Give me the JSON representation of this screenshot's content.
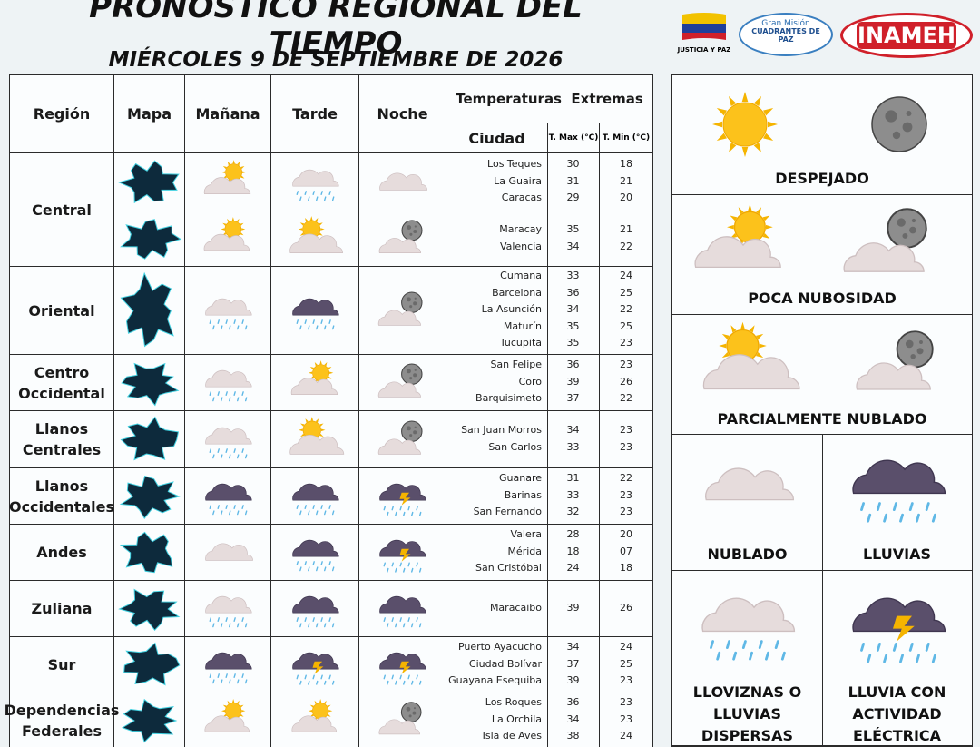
{
  "header": {
    "title": "PRONÓSTICO REGIONAL DEL TIEMPO",
    "date": "MIÉRCOLES 9 DE SEPTIEMBRE DE 2026"
  },
  "logos": {
    "flag_caption": "JUSTICIA Y PAZ",
    "mission": "Gran Misión",
    "mission_name": "CUADRANTES DE PAZ",
    "institute": "INAMEH"
  },
  "table": {
    "columns": [
      "Región",
      "Mapa",
      "Mañana",
      "Tarde",
      "Noche"
    ],
    "temperature_header": "Temperaturas  Extremas",
    "subcolumns": [
      "Ciudad",
      "T. Max (°C)",
      "T. Min (°C)"
    ],
    "regions": [
      {
        "name": "Central",
        "groups": [
          {
            "cities": [
              [
                "Los Teques",
                30,
                18
              ],
              [
                "La Guaira",
                31,
                21
              ],
              [
                "Caracas",
                29,
                20
              ]
            ]
          },
          {
            "cities": [
              [
                "Maracay",
                35,
                21
              ],
              [
                "Valencia",
                34,
                22
              ]
            ]
          }
        ]
      },
      {
        "name": "Oriental",
        "groups": [
          {
            "cities": [
              [
                "Cumana",
                33,
                24
              ],
              [
                "Barcelona",
                36,
                25
              ],
              [
                "La Asunción",
                34,
                22
              ],
              [
                "Maturín",
                35,
                25
              ],
              [
                "Tucupita",
                35,
                23
              ]
            ]
          }
        ]
      },
      {
        "name": "Centro Occidental",
        "groups": [
          {
            "cities": [
              [
                "San Felipe",
                36,
                23
              ],
              [
                "Coro",
                39,
                26
              ],
              [
                "Barquisimeto",
                37,
                22
              ]
            ]
          }
        ]
      },
      {
        "name": "Llanos Centrales",
        "groups": [
          {
            "cities": [
              [
                "San Juan Morros",
                34,
                23
              ],
              [
                "San Carlos",
                33,
                23
              ]
            ]
          }
        ]
      },
      {
        "name": "Llanos Occidentales",
        "groups": [
          {
            "cities": [
              [
                "Guanare",
                31,
                22
              ],
              [
                "Barinas",
                33,
                23
              ],
              [
                "San Fernando",
                32,
                23
              ]
            ]
          }
        ]
      },
      {
        "name": "Andes",
        "groups": [
          {
            "cities": [
              [
                "Valera",
                28,
                20
              ],
              [
                "Mérida",
                18,
                "07"
              ],
              [
                "San Cristóbal",
                24,
                18
              ]
            ]
          }
        ]
      },
      {
        "name": "Zuliana",
        "groups": [
          {
            "cities": [
              [
                "Maracaibo",
                39,
                26
              ]
            ]
          }
        ]
      },
      {
        "name": "Sur",
        "groups": [
          {
            "cities": [
              [
                "Puerto Ayacucho",
                34,
                24
              ],
              [
                "Ciudad Bolívar",
                37,
                25
              ],
              [
                "Guayana Esequiba",
                39,
                23
              ]
            ]
          }
        ]
      },
      {
        "name": "Dependencias Federales",
        "groups": [
          {
            "cities": [
              [
                "Los Roques",
                36,
                23
              ],
              [
                "La Orchila",
                34,
                23
              ],
              [
                "Isla de Aves",
                38,
                24
              ]
            ]
          }
        ]
      }
    ]
  },
  "legend": [
    {
      "label": "DESPEJADO"
    },
    {
      "label": "POCA NUBOSIDAD"
    },
    {
      "label": "PARCIALMENTE NUBLADO"
    },
    {
      "label": "NUBLADO"
    },
    {
      "label": "LLUVIAS"
    },
    {
      "label": "LLOVIZNAS O LLUVIAS DISPERSAS"
    },
    {
      "label": "LLUVIA CON ACTIVIDAD ELÉCTRICA"
    }
  ]
}
